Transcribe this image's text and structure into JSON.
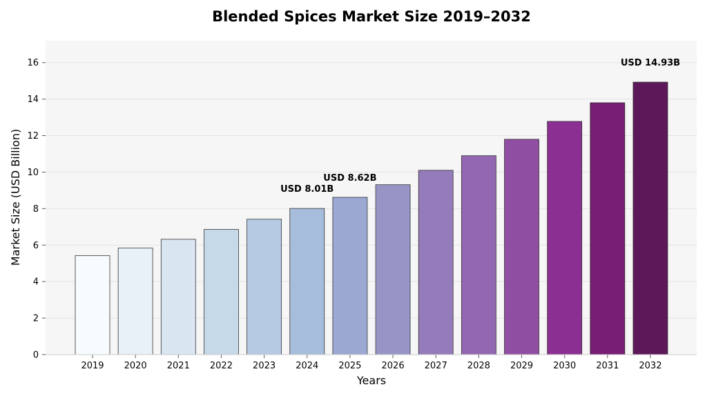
{
  "chart_data": {
    "type": "bar",
    "title": "Blended Spices Market Size 2019–2032",
    "xlabel": "Years",
    "ylabel": "Market Size (USD Billion)",
    "categories": [
      "2019",
      "2020",
      "2021",
      "2022",
      "2023",
      "2024",
      "2025",
      "2026",
      "2027",
      "2028",
      "2029",
      "2030",
      "2031",
      "2032"
    ],
    "values": [
      5.42,
      5.84,
      6.32,
      6.86,
      7.42,
      8.01,
      8.62,
      9.31,
      10.1,
      10.9,
      11.8,
      12.78,
      13.8,
      14.93
    ],
    "ylim": [
      0,
      17.2
    ],
    "yticks": [
      "0",
      "2",
      "4",
      "6",
      "8",
      "10",
      "12",
      "14",
      "16"
    ],
    "grid": "horizontal",
    "bar_colors": [
      "#f7fbfd",
      "#e8f0f8",
      "#d9e5f1",
      "#c6d9e9",
      "#b6cae3",
      "#a6bddb",
      "#9ba8d2",
      "#9795c5",
      "#947bb9",
      "#9367b2",
      "#904ea2",
      "#8b2f92",
      "#781e74",
      "#5d1859"
    ],
    "annotations": [
      {
        "category": "2024",
        "text": "USD 8.01B"
      },
      {
        "category": "2025",
        "text": "USD 8.62B"
      },
      {
        "category": "2032",
        "text": "USD 14.93B"
      }
    ],
    "plot_background": "#f6f6f6",
    "grid_color": "#e3e3e3",
    "bar_edge_color": "#333333"
  }
}
